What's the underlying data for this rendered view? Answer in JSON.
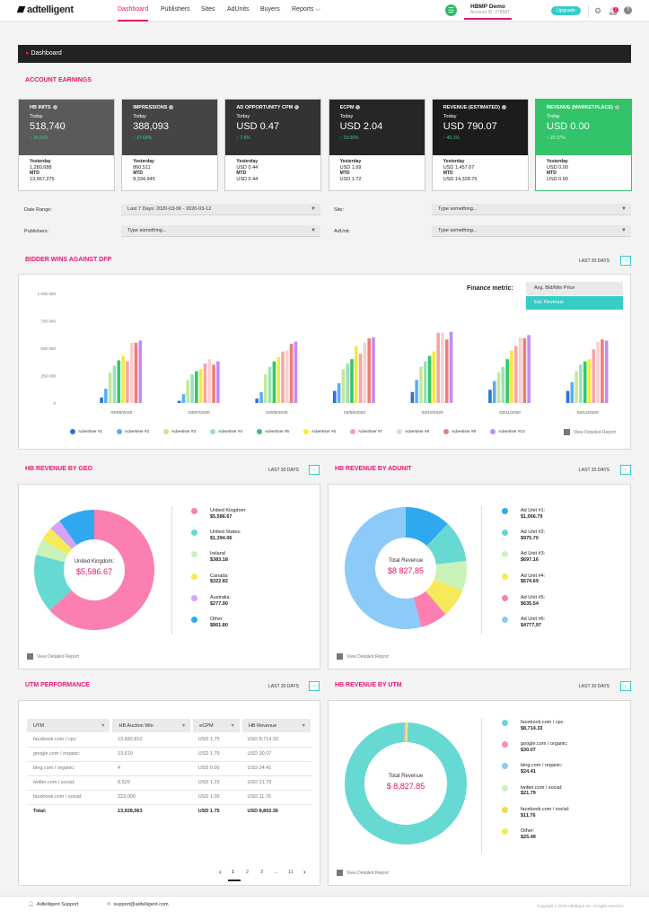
{
  "topbar": {
    "logo": "adtelligent",
    "nav": [
      {
        "label": "Dashboard",
        "active": true
      },
      {
        "label": "Publishers"
      },
      {
        "label": "Sites"
      },
      {
        "label": "AdUnits"
      },
      {
        "label": "Buyers"
      },
      {
        "label": "Reports ⌵"
      }
    ],
    "account_name": "HBMP Demo",
    "account_sub": "Account ID: 278587",
    "upgrade_label": "Upgrade",
    "notif_count": "2"
  },
  "dashbar_title": "Dashboard",
  "account_earnings": {
    "heading": "ACCOUNT EARNINGS",
    "cards": [
      {
        "title": "HB INITS",
        "today_label": "Today",
        "value": "518,740",
        "change": "↑ 16.51%",
        "color": "#5a5a5a",
        "yesterday_label": "Yesterday",
        "yesterday": "1,280,688",
        "mtd_label": "MTD",
        "mtd": "13,967,275"
      },
      {
        "title": "IMPRESSIONS",
        "today_label": "Today",
        "value": "388,093",
        "change": "↑ 27.69%",
        "color": "#454545",
        "yesterday_label": "Yesterday",
        "yesterday": "860,511",
        "mtd_label": "MTD",
        "mtd": "8,334,945"
      },
      {
        "title": "AD OPPORTUNITY CPM",
        "today_label": "Today",
        "value": "USD 0.47",
        "change": "↑ 7.9%",
        "color": "#333333",
        "yesterday_label": "Yesterday",
        "yesterday": "USD 0.44",
        "mtd_label": "MTD",
        "mtd": "USD 0.44"
      },
      {
        "title": "ECPM",
        "today_label": "Today",
        "value": "USD 2.04",
        "change": "↑ 19.06%",
        "color": "#262626",
        "yesterday_label": "Yesterday",
        "yesterday": "USD 1.69",
        "mtd_label": "MTD",
        "mtd": "USD 1.72"
      },
      {
        "title": "REVENUE (ESTIMATED)",
        "today_label": "Today",
        "value": "USD 790.07",
        "change": "↑ 40.1%",
        "color": "#1c1c1c",
        "yesterday_label": "Yesterday",
        "yesterday": "USD 1,457.67",
        "mtd_label": "MTD",
        "mtd": "USD 14,328.75"
      },
      {
        "title": "REVENUE (MARKETPLACE)",
        "today_label": "Today",
        "value": "USD 0.00",
        "change": "↑ 20.07%",
        "color": "#33c46a",
        "yesterday_label": "Yesterday",
        "yesterday": "USD 0.00",
        "mtd_label": "MTD",
        "mtd": "USD 0.00"
      }
    ]
  },
  "filters": {
    "date_range_label": "Date Range:",
    "date_range_value": "Last 7 Days: 2020-03-06 - 2020-03-12",
    "site_label": "Site:",
    "site_placeholder": "Type something...",
    "publishers_label": "Publishers:",
    "publishers_placeholder": "Type something...",
    "adunit_label": "AdUnit:",
    "adunit_placeholder": "Type something..."
  },
  "bidder_wins": {
    "heading": "BIDDER WINS AGAINST DFP",
    "range": "LAST 30 DAYS",
    "finance_label": "Finance metric:",
    "finance_options": [
      "Avg. Bid/Win Price",
      "Est. Revenue"
    ],
    "selected_option": 1,
    "view_report": "View Detailed Report"
  },
  "chart_data": {
    "type": "bar",
    "categories": [
      "03/06/2020",
      "03/07/2020",
      "03/08/2020",
      "03/09/2020",
      "03/10/2020",
      "03/11/2020",
      "03/12/2020"
    ],
    "ylim": [
      0,
      1000000
    ],
    "yticks": [
      "1 000 000",
      "750 000",
      "500 000",
      "250 000",
      "0"
    ],
    "series": [
      {
        "name": "Advertiser #1",
        "color": "#2f6fd8",
        "values": [
          50000,
          20000,
          40000,
          110000,
          100000,
          120000,
          110000
        ]
      },
      {
        "name": "Advertiser #2",
        "color": "#5aaef5",
        "values": [
          130000,
          80000,
          100000,
          180000,
          210000,
          200000,
          190000
        ]
      },
      {
        "name": "Advertiser #3",
        "color": "#c3e89a",
        "values": [
          280000,
          210000,
          260000,
          310000,
          330000,
          280000,
          290000
        ]
      },
      {
        "name": "Advertiser #4",
        "color": "#9fe0b6",
        "values": [
          340000,
          260000,
          330000,
          360000,
          380000,
          330000,
          350000
        ]
      },
      {
        "name": "Advertiser #5",
        "color": "#34c76a",
        "values": [
          390000,
          290000,
          380000,
          400000,
          430000,
          400000,
          380000
        ]
      },
      {
        "name": "Advertiser #6",
        "color": "#f6e93c",
        "values": [
          430000,
          310000,
          420000,
          520000,
          470000,
          480000,
          400000
        ]
      },
      {
        "name": "Advertiser #7",
        "color": "#f4a6a6",
        "values": [
          380000,
          360000,
          470000,
          450000,
          640000,
          520000,
          490000
        ]
      },
      {
        "name": "Advertiser #8",
        "color": "#f8cfcf",
        "values": [
          550000,
          400000,
          480000,
          550000,
          640000,
          600000,
          560000
        ]
      },
      {
        "name": "Advertiser #9",
        "color": "#f27b75",
        "values": [
          550000,
          350000,
          540000,
          590000,
          580000,
          590000,
          580000
        ]
      },
      {
        "name": "Advertiser #10",
        "color": "#c08cf5",
        "values": [
          570000,
          380000,
          560000,
          600000,
          650000,
          620000,
          570000
        ]
      }
    ]
  },
  "geo": {
    "heading": "HB REVENUE BY GEO",
    "range": "LAST 30 DAYS",
    "center_label": "United Kingdom:",
    "center_value": "$5,586.67",
    "view_report": "View Detailed Report",
    "items": [
      {
        "label": "United Kingdom:",
        "value": "$5,586.67",
        "amount": 5586.67,
        "color": "#fb7fb0"
      },
      {
        "label": "United States:",
        "value": "$1,394.06",
        "amount": 1394.06,
        "color": "#66d9d3"
      },
      {
        "label": "Ireland",
        "value": "$383.18",
        "amount": 383.18,
        "color": "#c9f3b8"
      },
      {
        "label": "Canada:",
        "value": "$322.82",
        "amount": 322.82,
        "color": "#f6e95a"
      },
      {
        "label": "Australia:",
        "value": "$277.90",
        "amount": 277.9,
        "color": "#d3a4f7"
      },
      {
        "label": "Other",
        "value": "$861.80",
        "amount": 861.8,
        "color": "#2fa8f0"
      }
    ]
  },
  "adunit": {
    "heading": "HB REVENUE BY ADUNIT",
    "range": "LAST 30 DAYS",
    "center_label": "Total Revenue",
    "center_value": "$8 827,85",
    "view_report": "View Detailed Report",
    "items": [
      {
        "label": "Ad Unit #1:",
        "value": "$1,066.79",
        "amount": 1066.79,
        "color": "#2fa8f0"
      },
      {
        "label": "Ad Unit #2:",
        "value": "$975.70",
        "amount": 975.7,
        "color": "#66d9d3"
      },
      {
        "label": "Ad Unit #3:",
        "value": "$697.16",
        "amount": 697.16,
        "color": "#c9f3b8"
      },
      {
        "label": "Ad Unit #4:",
        "value": "$674.69",
        "amount": 674.69,
        "color": "#f6e95a"
      },
      {
        "label": "Ad Unit #5:",
        "value": "$635.54",
        "amount": 635.54,
        "color": "#fb7fb0"
      },
      {
        "label": "Ad Unit #6:",
        "value": "$4777,97",
        "amount": 4777.97,
        "color": "#8ccbf7"
      }
    ]
  },
  "utm_perf": {
    "heading": "UTM PERFORMANCE",
    "range": "LAST 30 DAYS",
    "columns": [
      "UTM",
      "HB Auction Win",
      "eCPM",
      "HB Revenue"
    ],
    "rows": [
      [
        "facebook.com / cpc:",
        "13,682,810",
        "USD 1.75",
        "USD 8,714.33"
      ],
      [
        "google.com / organic:",
        "13,619",
        "USD 1.79",
        "USD 30,07"
      ],
      [
        "bing.com / organic:",
        "4",
        "USD 0.00",
        "USD 24.41"
      ],
      [
        "twitter.com / social:",
        "8,629",
        "USD 1.23",
        "USD 21.79"
      ],
      [
        "facebook.com / social:",
        "223,000",
        "USD 1.00",
        "USD 11.76"
      ]
    ],
    "total": [
      "Total:",
      "13,928,063",
      "USD 1.75",
      "USD 8,802.36"
    ],
    "pages": [
      "1",
      "2",
      "3",
      "...",
      "11"
    ]
  },
  "utm_revenue": {
    "heading": "HB REVENUE BY UTM",
    "range": "LAST 30 DAYS",
    "center_label": "Total Revenue",
    "center_value": "$ 8,827.85",
    "view_report": "View Detailed Report",
    "items": [
      {
        "label": "facebook.com / cpc:",
        "value": "$8,714.33",
        "amount": 8714.33,
        "color": "#66d9d3"
      },
      {
        "label": "google.com / organic:",
        "value": "$30.07",
        "amount": 30.07,
        "color": "#fb8fa8"
      },
      {
        "label": "bing.com / organic:",
        "value": "$24.41",
        "amount": 24.41,
        "color": "#8ccbf7"
      },
      {
        "label": "twitter.com / social:",
        "value": "$21.79",
        "amount": 21.79,
        "color": "#c9f3b8"
      },
      {
        "label": "facebook.com / social:",
        "value": "$11.76",
        "amount": 11.76,
        "color": "#f6d94a"
      },
      {
        "label": "Other:",
        "value": "$25.49",
        "amount": 25.49,
        "color": "#f6e95a"
      }
    ]
  },
  "footer": {
    "support": "Adtelligent Support",
    "email": "support@adtelligent.com",
    "copyright": "Copyright © 2020 Adtelligent Inc. All rights reserved."
  }
}
